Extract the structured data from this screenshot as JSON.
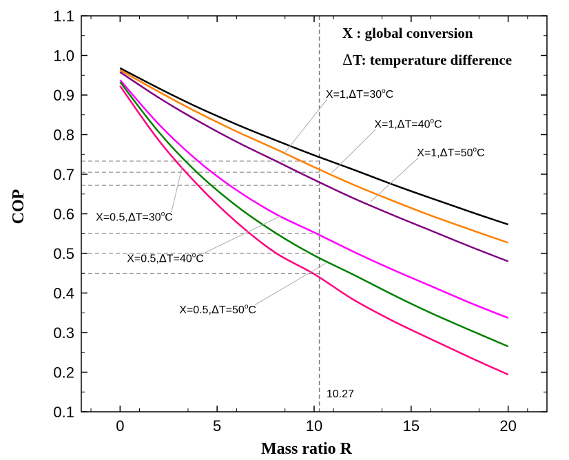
{
  "chart_data": {
    "type": "line",
    "xlabel": "Mass ratio R",
    "ylabel": "COP",
    "xlim": [
      -2,
      22
    ],
    "ylim": [
      0.1,
      1.1
    ],
    "x_ticks": [
      0,
      5,
      10,
      15,
      20
    ],
    "y_ticks": [
      0.1,
      0.2,
      0.3,
      0.4,
      0.5,
      0.6,
      0.7,
      0.8,
      0.9,
      1.0,
      1.1
    ],
    "x_tick_labels": [
      "0",
      "5",
      "10",
      "15",
      "20"
    ],
    "y_tick_labels": [
      "0.1",
      "0.2",
      "0.3",
      "0.4",
      "0.5",
      "0.6",
      "0.7",
      "0.8",
      "0.9",
      "1.0",
      "1.1"
    ],
    "grid": false,
    "legend_lines": [
      {
        "symbol": "X",
        "text": " :  global conversion"
      },
      {
        "symbol": "Δ",
        "text": "T: temperature difference"
      }
    ],
    "x": [
      0,
      2,
      4,
      6,
      8,
      10,
      12,
      14,
      16,
      18,
      20
    ],
    "series": [
      {
        "color": "#000000",
        "values": [
          0.968,
          0.917,
          0.869,
          0.826,
          0.786,
          0.748,
          0.712,
          0.675,
          0.64,
          0.606,
          0.573
        ]
      },
      {
        "color": "#ff8000",
        "values": [
          0.963,
          0.908,
          0.856,
          0.808,
          0.764,
          0.718,
          0.674,
          0.634,
          0.596,
          0.561,
          0.527
        ]
      },
      {
        "color": "#800080",
        "values": [
          0.958,
          0.893,
          0.835,
          0.782,
          0.734,
          0.686,
          0.64,
          0.598,
          0.558,
          0.518,
          0.48
        ]
      },
      {
        "color": "#ff00ff",
        "values": [
          0.938,
          0.826,
          0.734,
          0.66,
          0.6,
          0.553,
          0.505,
          0.46,
          0.418,
          0.376,
          0.337
        ]
      },
      {
        "color": "#008000",
        "values": [
          0.933,
          0.806,
          0.703,
          0.62,
          0.552,
          0.495,
          0.447,
          0.397,
          0.35,
          0.307,
          0.265
        ]
      },
      {
        "color": "#ff0080",
        "values": [
          0.923,
          0.785,
          0.673,
          0.579,
          0.502,
          0.448,
          0.384,
          0.331,
          0.284,
          0.238,
          0.194
        ]
      }
    ],
    "vertical_reference": {
      "x": 10.27,
      "label": "10.27"
    },
    "horizontal_references": [
      0.733,
      0.705,
      0.672,
      0.55,
      0.5,
      0.449
    ],
    "annotations": [
      {
        "name": "annot-x1-dt30",
        "prefix": "X=1,",
        "delta": "Δ",
        "body": "T=30",
        "sup": "o",
        "unit": "C",
        "pos": [
          10.6,
          0.893
        ],
        "target": [
          8.5,
          0.755
        ]
      },
      {
        "name": "annot-x1-dt40",
        "prefix": "X=1,",
        "delta": "Δ",
        "body": "T=40",
        "sup": "o",
        "unit": "C",
        "pos": [
          13.1,
          0.817
        ],
        "target": [
          10.9,
          0.703
        ]
      },
      {
        "name": "annot-x1-dt50",
        "prefix": "X=1,",
        "delta": "Δ",
        "body": "T=50",
        "sup": "o",
        "unit": "C",
        "pos": [
          15.3,
          0.745
        ],
        "target": [
          12.9,
          0.63
        ]
      },
      {
        "name": "annot-x05-dt30",
        "prefix": "X=0.5,",
        "delta": "Δ",
        "body": "T=30",
        "sup": "o",
        "unit": "C",
        "pos": [
          -1.25,
          0.583
        ],
        "target": [
          3.2,
          0.72
        ]
      },
      {
        "name": "annot-x05-dt40",
        "prefix": "X=0.5,",
        "delta": "Δ",
        "body": "T=40",
        "sup": "o",
        "unit": "C",
        "pos": [
          0.35,
          0.478
        ],
        "target": [
          8.3,
          0.595
        ]
      },
      {
        "name": "annot-x05-dt50",
        "prefix": "X=0.5,",
        "delta": "Δ",
        "body": "T=50",
        "sup": "o",
        "unit": "C",
        "pos": [
          3.05,
          0.349
        ],
        "target": [
          10.6,
          0.475
        ]
      }
    ]
  }
}
